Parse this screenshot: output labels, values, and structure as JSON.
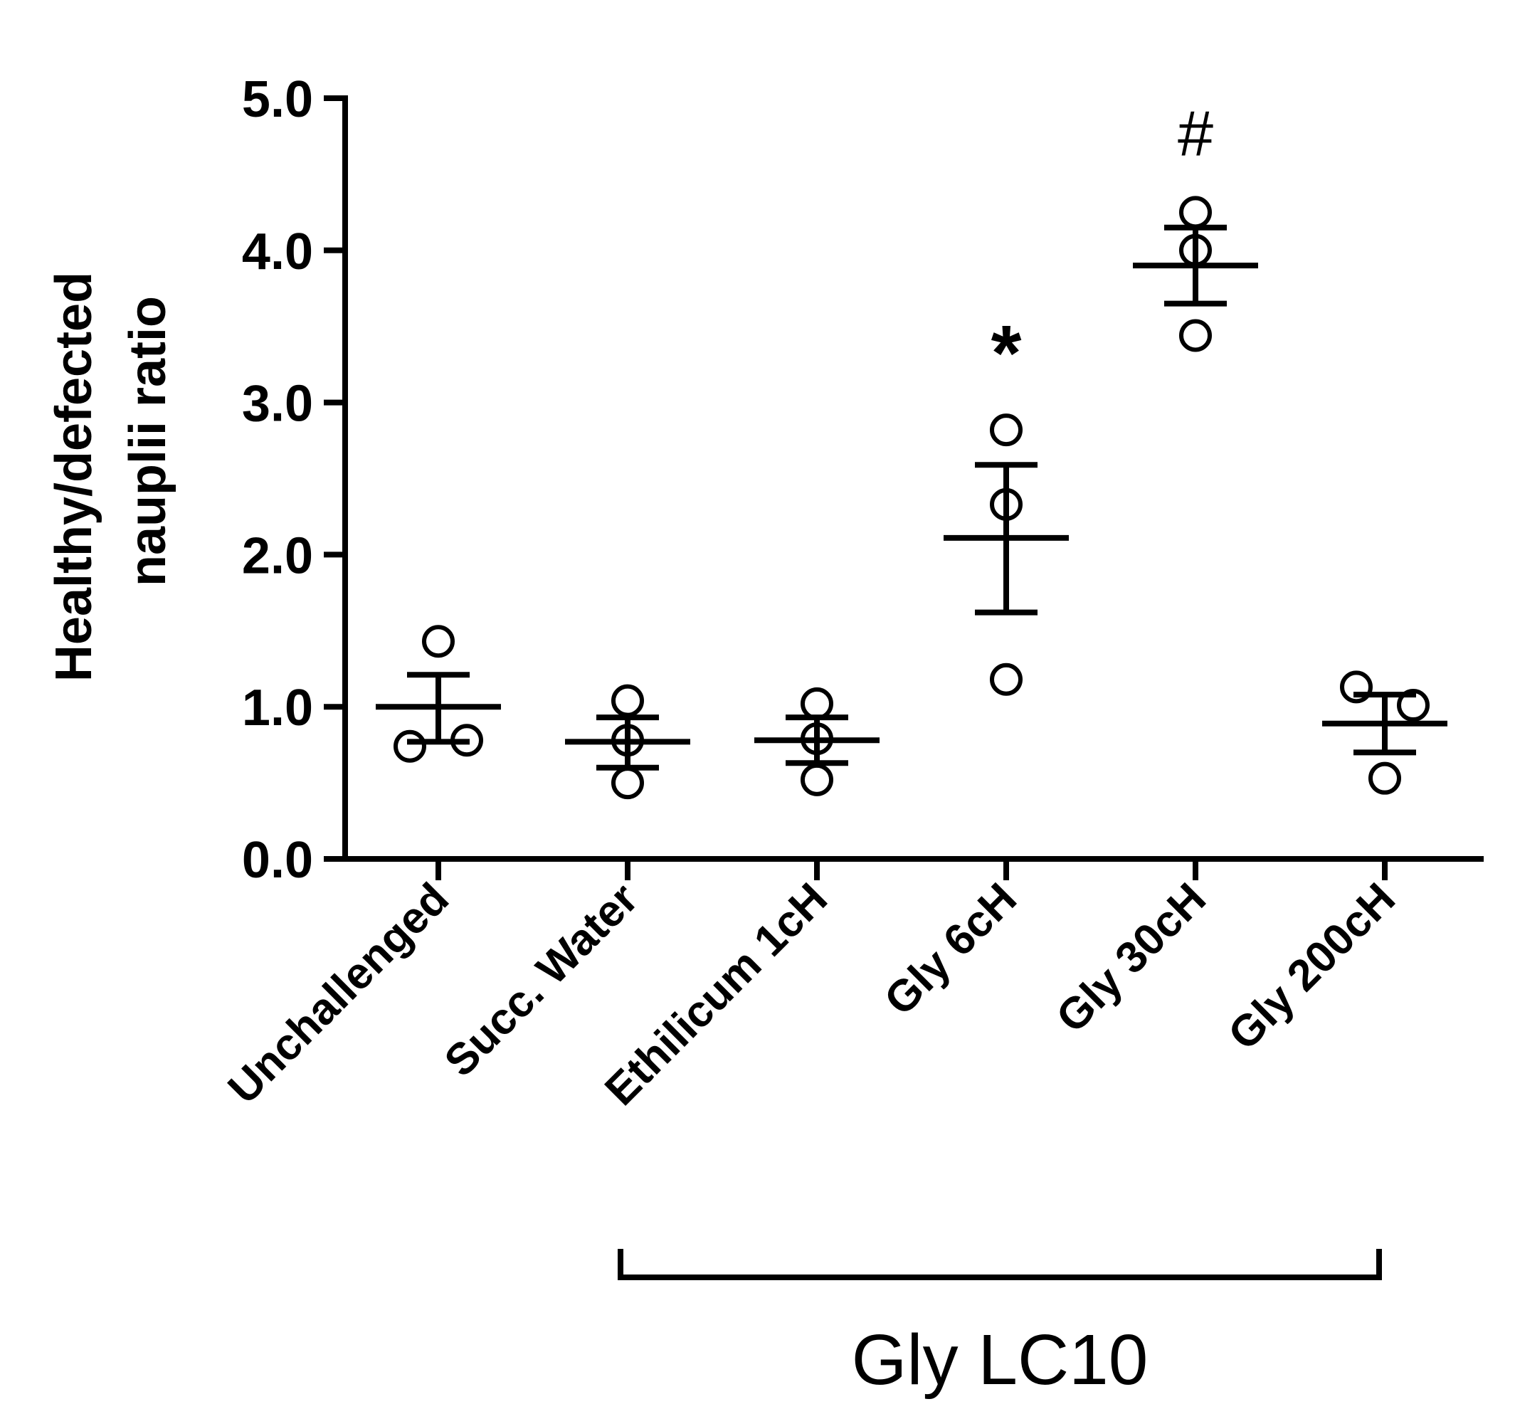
{
  "chart_data": {
    "type": "scatter",
    "ylabel_lines": [
      "Healthy/defected",
      "nauplii ratio"
    ],
    "ylim": [
      0,
      5
    ],
    "yticks": [
      "0.0",
      "1.0",
      "2.0",
      "3.0",
      "4.0",
      "5.0"
    ],
    "categories": [
      "Unchallenged",
      "Succ. Water",
      "Ethilicum 1cH",
      "Gly 6cH",
      "Gly 30cH",
      "Gly 200cH"
    ],
    "groups": [
      {
        "name": "Unchallenged",
        "mean": 1.0,
        "sem_low": 0.77,
        "sem_high": 1.21,
        "points": [
          1.43,
          0.74,
          0.78
        ],
        "annotation": ""
      },
      {
        "name": "Succ. Water",
        "mean": 0.77,
        "sem_low": 0.6,
        "sem_high": 0.93,
        "points": [
          1.04,
          0.78,
          0.5
        ],
        "annotation": ""
      },
      {
        "name": "Ethilicum 1cH",
        "mean": 0.78,
        "sem_low": 0.63,
        "sem_high": 0.93,
        "points": [
          1.02,
          0.79,
          0.52
        ],
        "annotation": ""
      },
      {
        "name": "Gly 6cH",
        "mean": 2.11,
        "sem_low": 1.62,
        "sem_high": 2.59,
        "points": [
          2.82,
          2.33,
          1.18
        ],
        "annotation": "*"
      },
      {
        "name": "Gly 30cH",
        "mean": 3.9,
        "sem_low": 3.65,
        "sem_high": 4.15,
        "points": [
          4.25,
          4.0,
          3.44
        ],
        "annotation": "#"
      },
      {
        "name": "Gly 200cH",
        "mean": 0.89,
        "sem_low": 0.7,
        "sem_high": 1.08,
        "points": [
          1.13,
          1.01,
          0.53
        ],
        "annotation": ""
      }
    ],
    "bracket": {
      "label": "Gly LC10",
      "from_category": 1,
      "to_category": 5
    }
  }
}
